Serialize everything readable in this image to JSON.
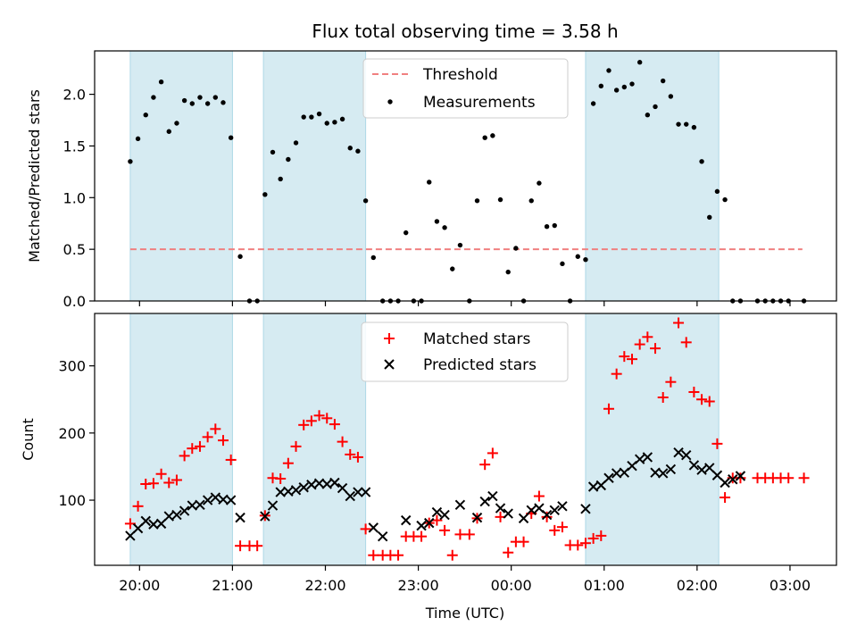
{
  "title": "Flux total observing time = 3.58 h",
  "colors": {
    "shade": "#add8e6",
    "threshold": "#f08080",
    "measurements": "#000000",
    "matched": "#ff0000",
    "predicted": "#000000"
  },
  "chart_data": [
    {
      "type": "scatter",
      "title": "Flux total observing time = 3.58 h",
      "ylabel": "Matched/Predicted stars",
      "xlabel": "",
      "xlim": [
        "19:31",
        "03:30"
      ],
      "ylim": [
        0,
        2.42
      ],
      "yticks": [
        "0.0",
        "0.5",
        "1.0",
        "1.5",
        "2.0"
      ],
      "legend": {
        "placement": "top-center",
        "entries": [
          "Threshold",
          "Measurements"
        ]
      },
      "shaded_intervals": [
        [
          "19:54",
          "21:00"
        ],
        [
          "21:20",
          "22:26"
        ],
        [
          "00:48",
          "02:14"
        ]
      ],
      "threshold": {
        "name": "Threshold",
        "y": 0.5,
        "x_range": [
          "19:54",
          "03:08"
        ]
      },
      "series": [
        {
          "name": "Measurements",
          "marker": "dot",
          "points": [
            [
              "19:54",
              1.35
            ],
            [
              "19:59",
              1.57
            ],
            [
              "20:04",
              1.8
            ],
            [
              "20:09",
              1.97
            ],
            [
              "20:14",
              2.12
            ],
            [
              "20:19",
              1.64
            ],
            [
              "20:24",
              1.72
            ],
            [
              "20:29",
              1.94
            ],
            [
              "20:34",
              1.91
            ],
            [
              "20:39",
              1.97
            ],
            [
              "20:44",
              1.91
            ],
            [
              "20:49",
              1.97
            ],
            [
              "20:54",
              1.92
            ],
            [
              "20:59",
              1.58
            ],
            [
              "21:05",
              0.43
            ],
            [
              "21:11",
              0.0
            ],
            [
              "21:16",
              0.0
            ],
            [
              "21:21",
              1.03
            ],
            [
              "21:26",
              1.44
            ],
            [
              "21:31",
              1.18
            ],
            [
              "21:36",
              1.37
            ],
            [
              "21:41",
              1.53
            ],
            [
              "21:46",
              1.78
            ],
            [
              "21:51",
              1.78
            ],
            [
              "21:56",
              1.81
            ],
            [
              "22:01",
              1.72
            ],
            [
              "22:06",
              1.73
            ],
            [
              "22:11",
              1.76
            ],
            [
              "22:16",
              1.48
            ],
            [
              "22:21",
              1.45
            ],
            [
              "22:26",
              0.97
            ],
            [
              "22:31",
              0.42
            ],
            [
              "22:37",
              0.0
            ],
            [
              "22:42",
              0.0
            ],
            [
              "22:47",
              0.0
            ],
            [
              "22:52",
              0.66
            ],
            [
              "22:57",
              0.0
            ],
            [
              "23:02",
              0.0
            ],
            [
              "23:07",
              1.15
            ],
            [
              "23:12",
              0.77
            ],
            [
              "23:17",
              0.71
            ],
            [
              "23:22",
              0.31
            ],
            [
              "23:27",
              0.54
            ],
            [
              "23:33",
              0.0
            ],
            [
              "23:38",
              0.97
            ],
            [
              "23:43",
              1.58
            ],
            [
              "23:48",
              1.6
            ],
            [
              "23:53",
              0.98
            ],
            [
              "23:58",
              0.28
            ],
            [
              "00:03",
              0.51
            ],
            [
              "00:08",
              0.0
            ],
            [
              "00:13",
              0.97
            ],
            [
              "00:18",
              1.14
            ],
            [
              "00:23",
              0.72
            ],
            [
              "00:28",
              0.73
            ],
            [
              "00:33",
              0.36
            ],
            [
              "00:38",
              0.0
            ],
            [
              "00:43",
              0.43
            ],
            [
              "00:48",
              0.4
            ],
            [
              "00:53",
              1.91
            ],
            [
              "00:58",
              2.08
            ],
            [
              "01:03",
              2.23
            ],
            [
              "01:08",
              2.04
            ],
            [
              "01:13",
              2.07
            ],
            [
              "01:18",
              2.1
            ],
            [
              "01:23",
              2.31
            ],
            [
              "01:28",
              1.8
            ],
            [
              "01:33",
              1.88
            ],
            [
              "01:38",
              2.13
            ],
            [
              "01:43",
              1.98
            ],
            [
              "01:48",
              1.71
            ],
            [
              "01:53",
              1.71
            ],
            [
              "01:58",
              1.68
            ],
            [
              "02:03",
              1.35
            ],
            [
              "02:08",
              0.81
            ],
            [
              "02:13",
              1.06
            ],
            [
              "02:18",
              0.98
            ],
            [
              "02:23",
              0.0
            ],
            [
              "02:28",
              0.0
            ],
            [
              "02:39",
              0.0
            ],
            [
              "02:44",
              0.0
            ],
            [
              "02:49",
              0.0
            ],
            [
              "02:54",
              0.0
            ],
            [
              "02:59",
              0.0
            ],
            [
              "03:09",
              0.0
            ]
          ]
        }
      ]
    },
    {
      "type": "scatter",
      "title": "",
      "ylabel": "Count",
      "xlabel": "Time (UTC)",
      "xlim": [
        "19:31",
        "03:30"
      ],
      "ylim": [
        3,
        378
      ],
      "yticks": [
        "100",
        "200",
        "300"
      ],
      "xticks": [
        "20:00",
        "21:00",
        "22:00",
        "23:00",
        "00:00",
        "01:00",
        "02:00",
        "03:00"
      ],
      "legend": {
        "placement": "top-center",
        "entries": [
          "Matched stars",
          "Predicted stars"
        ]
      },
      "shaded_intervals": [
        [
          "19:54",
          "21:00"
        ],
        [
          "21:20",
          "22:26"
        ],
        [
          "00:48",
          "02:14"
        ]
      ],
      "series": [
        {
          "name": "Matched stars",
          "marker": "plus",
          "points": [
            [
              "19:54",
              65
            ],
            [
              "19:59",
              91
            ],
            [
              "20:04",
              124
            ],
            [
              "20:09",
              125
            ],
            [
              "20:14",
              139
            ],
            [
              "20:19",
              126
            ],
            [
              "20:24",
              130
            ],
            [
              "20:29",
              166
            ],
            [
              "20:34",
              177
            ],
            [
              "20:39",
              180
            ],
            [
              "20:44",
              194
            ],
            [
              "20:49",
              206
            ],
            [
              "20:54",
              189
            ],
            [
              "20:59",
              160
            ],
            [
              "21:05",
              32
            ],
            [
              "21:11",
              32
            ],
            [
              "21:16",
              32
            ],
            [
              "21:21",
              77
            ],
            [
              "21:26",
              133
            ],
            [
              "21:31",
              132
            ],
            [
              "21:36",
              155
            ],
            [
              "21:41",
              180
            ],
            [
              "21:46",
              212
            ],
            [
              "21:51",
              218
            ],
            [
              "21:56",
              226
            ],
            [
              "22:01",
              222
            ],
            [
              "22:06",
              213
            ],
            [
              "22:11",
              187
            ],
            [
              "22:16",
              168
            ],
            [
              "22:21",
              164
            ],
            [
              "22:26",
              57
            ],
            [
              "22:31",
              18
            ],
            [
              "22:37",
              18
            ],
            [
              "22:42",
              18
            ],
            [
              "22:47",
              18
            ],
            [
              "22:52",
              46
            ],
            [
              "22:57",
              46
            ],
            [
              "23:02",
              46
            ],
            [
              "23:07",
              66
            ],
            [
              "23:12",
              70
            ],
            [
              "23:17",
              55
            ],
            [
              "23:22",
              18
            ],
            [
              "23:27",
              49
            ],
            [
              "23:33",
              49
            ],
            [
              "23:38",
              73
            ],
            [
              "23:43",
              153
            ],
            [
              "23:48",
              170
            ],
            [
              "23:53",
              75
            ],
            [
              "23:58",
              22
            ],
            [
              "00:03",
              38
            ],
            [
              "00:08",
              38
            ],
            [
              "00:13",
              80
            ],
            [
              "00:18",
              106
            ],
            [
              "00:23",
              75
            ],
            [
              "00:28",
              55
            ],
            [
              "00:33",
              60
            ],
            [
              "00:38",
              33
            ],
            [
              "00:43",
              33
            ],
            [
              "00:48",
              36
            ],
            [
              "00:53",
              43
            ],
            [
              "00:58",
              47
            ],
            [
              "01:03",
              236
            ],
            [
              "01:08",
              288
            ],
            [
              "01:13",
              314
            ],
            [
              "01:18",
              310
            ],
            [
              "01:23",
              332
            ],
            [
              "01:28",
              343
            ],
            [
              "01:33",
              326
            ],
            [
              "01:38",
              253
            ],
            [
              "01:43",
              276
            ],
            [
              "01:48",
              364
            ],
            [
              "01:53",
              335
            ],
            [
              "01:58",
              261
            ],
            [
              "02:03",
              250
            ],
            [
              "02:08",
              247
            ],
            [
              "02:13",
              184
            ],
            [
              "02:18",
              104
            ],
            [
              "02:23",
              133
            ],
            [
              "02:28",
              133
            ],
            [
              "02:39",
              133
            ],
            [
              "02:44",
              133
            ],
            [
              "02:49",
              133
            ],
            [
              "02:54",
              133
            ],
            [
              "02:59",
              133
            ],
            [
              "03:09",
              133
            ]
          ]
        },
        {
          "name": "Predicted stars",
          "marker": "x",
          "points": [
            [
              "19:54",
              47
            ],
            [
              "19:59",
              58
            ],
            [
              "20:04",
              69
            ],
            [
              "20:09",
              64
            ],
            [
              "20:14",
              65
            ],
            [
              "20:19",
              76
            ],
            [
              "20:24",
              78
            ],
            [
              "20:29",
              84
            ],
            [
              "20:34",
              92
            ],
            [
              "20:39",
              93
            ],
            [
              "20:44",
              100
            ],
            [
              "20:49",
              104
            ],
            [
              "20:54",
              101
            ],
            [
              "20:59",
              100
            ],
            [
              "21:05",
              74
            ],
            [
              "21:21",
              76
            ],
            [
              "21:26",
              92
            ],
            [
              "21:31",
              112
            ],
            [
              "21:36",
              113
            ],
            [
              "21:41",
              115
            ],
            [
              "21:46",
              119
            ],
            [
              "21:51",
              123
            ],
            [
              "21:56",
              125
            ],
            [
              "22:01",
              124
            ],
            [
              "22:06",
              126
            ],
            [
              "22:11",
              118
            ],
            [
              "22:16",
              106
            ],
            [
              "22:21",
              112
            ],
            [
              "22:26",
              112
            ],
            [
              "22:31",
              59
            ],
            [
              "22:37",
              46
            ],
            [
              "22:52",
              70
            ],
            [
              "23:02",
              62
            ],
            [
              "23:07",
              66
            ],
            [
              "23:12",
              82
            ],
            [
              "23:17",
              78
            ],
            [
              "23:27",
              93
            ],
            [
              "23:38",
              74
            ],
            [
              "23:43",
              98
            ],
            [
              "23:48",
              106
            ],
            [
              "23:53",
              88
            ],
            [
              "23:58",
              80
            ],
            [
              "00:08",
              73
            ],
            [
              "00:13",
              85
            ],
            [
              "00:18",
              88
            ],
            [
              "00:23",
              78
            ],
            [
              "00:28",
              85
            ],
            [
              "00:33",
              91
            ],
            [
              "00:48",
              87
            ],
            [
              "00:53",
              120
            ],
            [
              "00:58",
              122
            ],
            [
              "01:03",
              133
            ],
            [
              "01:08",
              140
            ],
            [
              "01:13",
              141
            ],
            [
              "01:18",
              151
            ],
            [
              "01:23",
              161
            ],
            [
              "01:28",
              164
            ],
            [
              "01:33",
              141
            ],
            [
              "01:38",
              140
            ],
            [
              "01:43",
              146
            ],
            [
              "01:48",
              171
            ],
            [
              "01:53",
              167
            ],
            [
              "01:58",
              152
            ],
            [
              "02:03",
              145
            ],
            [
              "02:08",
              148
            ],
            [
              "02:13",
              137
            ],
            [
              "02:18",
              126
            ],
            [
              "02:23",
              131
            ],
            [
              "02:28",
              136
            ]
          ]
        }
      ]
    }
  ]
}
